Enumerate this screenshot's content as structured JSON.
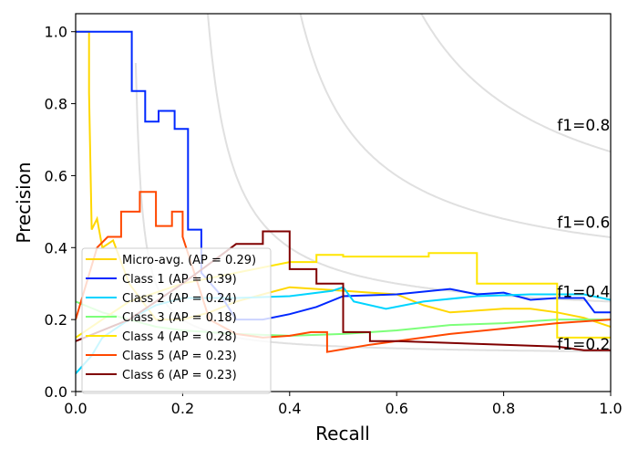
{
  "chart_data": {
    "type": "line",
    "title": "",
    "xlabel": "Recall",
    "ylabel": "Precision",
    "xlim": [
      0,
      1.0
    ],
    "ylim": [
      0,
      1.05
    ],
    "xticks": [
      "0.0",
      "0.2",
      "0.4",
      "0.6",
      "0.8",
      "1.0"
    ],
    "yticks": [
      "0.0",
      "0.2",
      "0.4",
      "0.6",
      "0.8",
      "1.0"
    ],
    "legend_position": "lower-left",
    "iso_f1": [
      {
        "f": 0.2,
        "label": "f1=0.2"
      },
      {
        "f": 0.4,
        "label": "f1=0.4"
      },
      {
        "f": 0.6,
        "label": "f1=0.6"
      },
      {
        "f": 0.8,
        "label": "f1=0.8"
      }
    ],
    "iso_color": "#e0e0e0",
    "series": [
      {
        "name": "Micro-avg. (AP = 0.29)",
        "color": "#FFD700",
        "points": [
          [
            0,
            1.0
          ],
          [
            0.025,
            1.0
          ],
          [
            0.025,
            0.83
          ],
          [
            0.03,
            0.45
          ],
          [
            0.04,
            0.48
          ],
          [
            0.05,
            0.4
          ],
          [
            0.07,
            0.42
          ],
          [
            0.1,
            0.3
          ],
          [
            0.15,
            0.2
          ],
          [
            0.2,
            0.2
          ],
          [
            0.25,
            0.22
          ],
          [
            0.3,
            0.25
          ],
          [
            0.35,
            0.27
          ],
          [
            0.4,
            0.29
          ],
          [
            0.45,
            0.285
          ],
          [
            0.5,
            0.28
          ],
          [
            0.55,
            0.275
          ],
          [
            0.6,
            0.27
          ],
          [
            0.65,
            0.24
          ],
          [
            0.7,
            0.22
          ],
          [
            0.75,
            0.225
          ],
          [
            0.8,
            0.23
          ],
          [
            0.85,
            0.23
          ],
          [
            0.9,
            0.22
          ],
          [
            0.95,
            0.205
          ],
          [
            1.0,
            0.18
          ]
        ]
      },
      {
        "name": "Class 1 (AP = 0.39)",
        "color": "#0028FF",
        "points": [
          [
            0,
            1.0
          ],
          [
            0.105,
            1.0
          ],
          [
            0.105,
            0.835
          ],
          [
            0.13,
            0.835
          ],
          [
            0.13,
            0.75
          ],
          [
            0.155,
            0.75
          ],
          [
            0.155,
            0.78
          ],
          [
            0.185,
            0.78
          ],
          [
            0.185,
            0.73
          ],
          [
            0.21,
            0.73
          ],
          [
            0.21,
            0.45
          ],
          [
            0.235,
            0.45
          ],
          [
            0.235,
            0.33
          ],
          [
            0.27,
            0.27
          ],
          [
            0.3,
            0.2
          ],
          [
            0.35,
            0.2
          ],
          [
            0.4,
            0.215
          ],
          [
            0.45,
            0.235
          ],
          [
            0.5,
            0.265
          ],
          [
            0.6,
            0.27
          ],
          [
            0.7,
            0.285
          ],
          [
            0.75,
            0.27
          ],
          [
            0.8,
            0.275
          ],
          [
            0.85,
            0.255
          ],
          [
            0.9,
            0.26
          ],
          [
            0.95,
            0.26
          ],
          [
            0.97,
            0.22
          ],
          [
            1.0,
            0.22
          ]
        ]
      },
      {
        "name": "Class 2 (AP = 0.24)",
        "color": "#00D4FF",
        "points": [
          [
            0,
            0.05
          ],
          [
            0.03,
            0.1
          ],
          [
            0.05,
            0.15
          ],
          [
            0.1,
            0.2
          ],
          [
            0.15,
            0.24
          ],
          [
            0.2,
            0.26
          ],
          [
            0.3,
            0.26
          ],
          [
            0.4,
            0.265
          ],
          [
            0.48,
            0.28
          ],
          [
            0.5,
            0.29
          ],
          [
            0.52,
            0.25
          ],
          [
            0.58,
            0.23
          ],
          [
            0.65,
            0.25
          ],
          [
            0.75,
            0.265
          ],
          [
            0.85,
            0.27
          ],
          [
            0.95,
            0.27
          ],
          [
            1.0,
            0.255
          ]
        ]
      },
      {
        "name": "Class 3 (AP = 0.18)",
        "color": "#7DFF7A",
        "points": [
          [
            0,
            0.25
          ],
          [
            0.05,
            0.22
          ],
          [
            0.1,
            0.2
          ],
          [
            0.15,
            0.18
          ],
          [
            0.2,
            0.17
          ],
          [
            0.3,
            0.16
          ],
          [
            0.4,
            0.155
          ],
          [
            0.5,
            0.16
          ],
          [
            0.6,
            0.17
          ],
          [
            0.7,
            0.185
          ],
          [
            0.8,
            0.19
          ],
          [
            0.9,
            0.2
          ],
          [
            1.0,
            0.2
          ]
        ]
      },
      {
        "name": "Class 4 (AP = 0.28)",
        "color": "#FFE500",
        "points": [
          [
            0,
            0.15
          ],
          [
            0.05,
            0.2
          ],
          [
            0.1,
            0.25
          ],
          [
            0.2,
            0.3
          ],
          [
            0.3,
            0.33
          ],
          [
            0.4,
            0.36
          ],
          [
            0.45,
            0.36
          ],
          [
            0.45,
            0.38
          ],
          [
            0.5,
            0.38
          ],
          [
            0.5,
            0.375
          ],
          [
            0.66,
            0.375
          ],
          [
            0.66,
            0.385
          ],
          [
            0.75,
            0.385
          ],
          [
            0.75,
            0.3
          ],
          [
            0.9,
            0.3
          ],
          [
            0.9,
            0.15
          ],
          [
            1.0,
            0.15
          ]
        ]
      },
      {
        "name": "Class 5 (AP = 0.23)",
        "color": "#FF4800",
        "points": [
          [
            0,
            0.2
          ],
          [
            0.04,
            0.4
          ],
          [
            0.06,
            0.43
          ],
          [
            0.085,
            0.43
          ],
          [
            0.085,
            0.5
          ],
          [
            0.12,
            0.5
          ],
          [
            0.12,
            0.555
          ],
          [
            0.15,
            0.555
          ],
          [
            0.15,
            0.46
          ],
          [
            0.18,
            0.46
          ],
          [
            0.18,
            0.5
          ],
          [
            0.2,
            0.5
          ],
          [
            0.2,
            0.43
          ],
          [
            0.25,
            0.2
          ],
          [
            0.3,
            0.16
          ],
          [
            0.35,
            0.15
          ],
          [
            0.4,
            0.155
          ],
          [
            0.44,
            0.165
          ],
          [
            0.47,
            0.165
          ],
          [
            0.47,
            0.11
          ],
          [
            0.55,
            0.13
          ],
          [
            0.6,
            0.14
          ],
          [
            0.7,
            0.16
          ],
          [
            0.8,
            0.175
          ],
          [
            0.9,
            0.19
          ],
          [
            1.0,
            0.2
          ]
        ]
      },
      {
        "name": "Class 6 (AP = 0.23)",
        "color": "#800000",
        "points": [
          [
            0,
            0.14
          ],
          [
            0.1,
            0.2
          ],
          [
            0.2,
            0.3
          ],
          [
            0.3,
            0.41
          ],
          [
            0.35,
            0.41
          ],
          [
            0.35,
            0.445
          ],
          [
            0.4,
            0.445
          ],
          [
            0.4,
            0.34
          ],
          [
            0.45,
            0.34
          ],
          [
            0.45,
            0.3
          ],
          [
            0.5,
            0.3
          ],
          [
            0.5,
            0.165
          ],
          [
            0.55,
            0.165
          ],
          [
            0.55,
            0.14
          ],
          [
            0.6,
            0.14
          ],
          [
            0.8,
            0.13
          ],
          [
            0.9,
            0.125
          ],
          [
            0.95,
            0.115
          ],
          [
            1.0,
            0.115
          ]
        ]
      }
    ]
  }
}
